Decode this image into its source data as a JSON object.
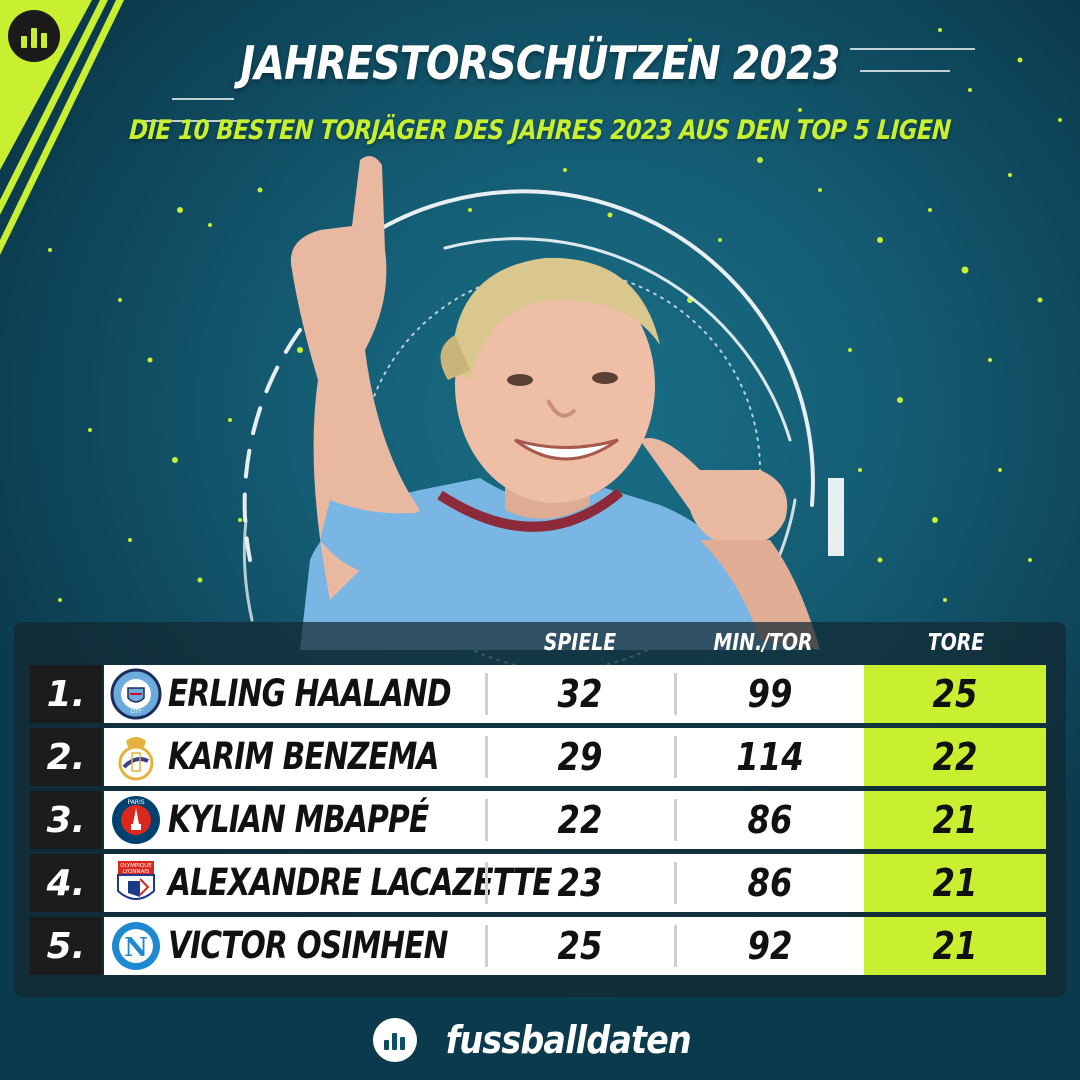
{
  "header": {
    "title": "JAHRESTORSCHÜTZEN 2023",
    "subtitle": "DIE 10 BESTEN TORJÄGER DES JAHRES 2023 AUS DEN TOP 5 LIGEN"
  },
  "table": {
    "columns": {
      "games": "SPIELE",
      "min_per_goal": "MIN./TOR",
      "goals": "TORE"
    },
    "rows": [
      {
        "rank": "1.",
        "name": "ERLING HAALAND",
        "games": "32",
        "min_per_goal": "99",
        "goals": "25",
        "crest": "manchester-city-crest-icon"
      },
      {
        "rank": "2.",
        "name": "KARIM BENZEMA",
        "games": "29",
        "min_per_goal": "114",
        "goals": "22",
        "crest": "real-madrid-crest-icon"
      },
      {
        "rank": "3.",
        "name": "KYLIAN MBAPPÉ",
        "games": "22",
        "min_per_goal": "86",
        "goals": "21",
        "crest": "psg-crest-icon"
      },
      {
        "rank": "4.",
        "name": "ALEXANDRE LACAZETTE",
        "games": "23",
        "min_per_goal": "86",
        "goals": "21",
        "crest": "lyon-crest-icon"
      },
      {
        "rank": "5.",
        "name": "VICTOR OSIMHEN",
        "games": "25",
        "min_per_goal": "92",
        "goals": "21",
        "crest": "napoli-crest-icon"
      }
    ]
  },
  "crest_text": {
    "city": "CITY",
    "paris": "PARIS",
    "lyon_top": "OLYMPIQUE",
    "lyon_bottom": "LYONNAIS",
    "napoli": "N"
  },
  "brand": {
    "name": "fussballdaten",
    "logo": "bar-chart-logo-icon"
  },
  "colors": {
    "accent": "#c8f030",
    "background": "#0f4d63",
    "rank_cell": "#1c1c1c"
  }
}
